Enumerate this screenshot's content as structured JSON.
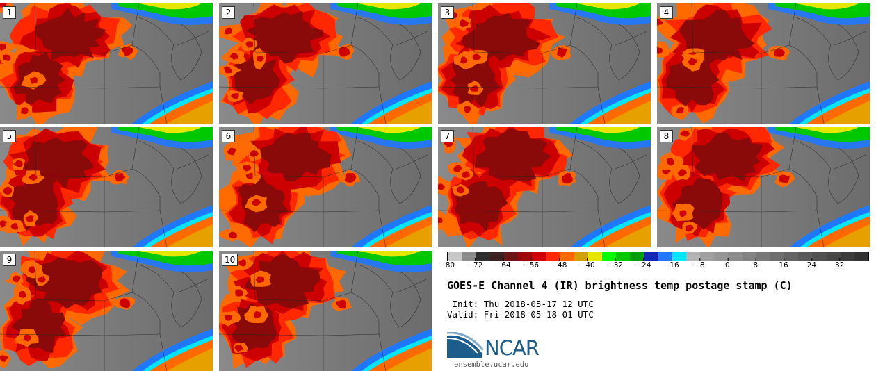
{
  "panels": [
    {
      "label": "1"
    },
    {
      "label": "2"
    },
    {
      "label": "3"
    },
    {
      "label": "4"
    },
    {
      "label": "5"
    },
    {
      "label": "6"
    },
    {
      "label": "7"
    },
    {
      "label": "8"
    },
    {
      "label": "9"
    },
    {
      "label": "10"
    }
  ],
  "colorbar": {
    "tick_labels": [
      "−80",
      "−72",
      "−64",
      "−56",
      "−48",
      "−40",
      "−32",
      "−24",
      "−16",
      "−8",
      "0",
      "8",
      "16",
      "24",
      "32"
    ],
    "min": -80,
    "max": 40,
    "colors": [
      "#c8c8c8",
      "#8c8c8c",
      "#2e2e2e",
      "#3c2020",
      "#6e1414",
      "#9e0808",
      "#cc0000",
      "#ff2800",
      "#ff6a00",
      "#d2a000",
      "#e6e600",
      "#00ff00",
      "#00c800",
      "#009e00",
      "#1428b4",
      "#1e78ff",
      "#00e6ff",
      "#b4b4b4",
      "#a0a0a0",
      "#969696",
      "#8c8c8c",
      "#828282",
      "#787878",
      "#6e6e6e",
      "#646464",
      "#5a5a5a",
      "#505050",
      "#464646",
      "#3c3c3c",
      "#323232"
    ]
  },
  "title": "GOES-E Channel 4 (IR) brightness temp postage stamp (C)",
  "init": " Init: Thu 2018-05-17 12 UTC",
  "valid": "Valid: Fri 2018-05-18 01 UTC",
  "logo": {
    "text": "NCAR",
    "color": "#1d5d8c"
  },
  "site": "ensemble.ucar.edu"
}
